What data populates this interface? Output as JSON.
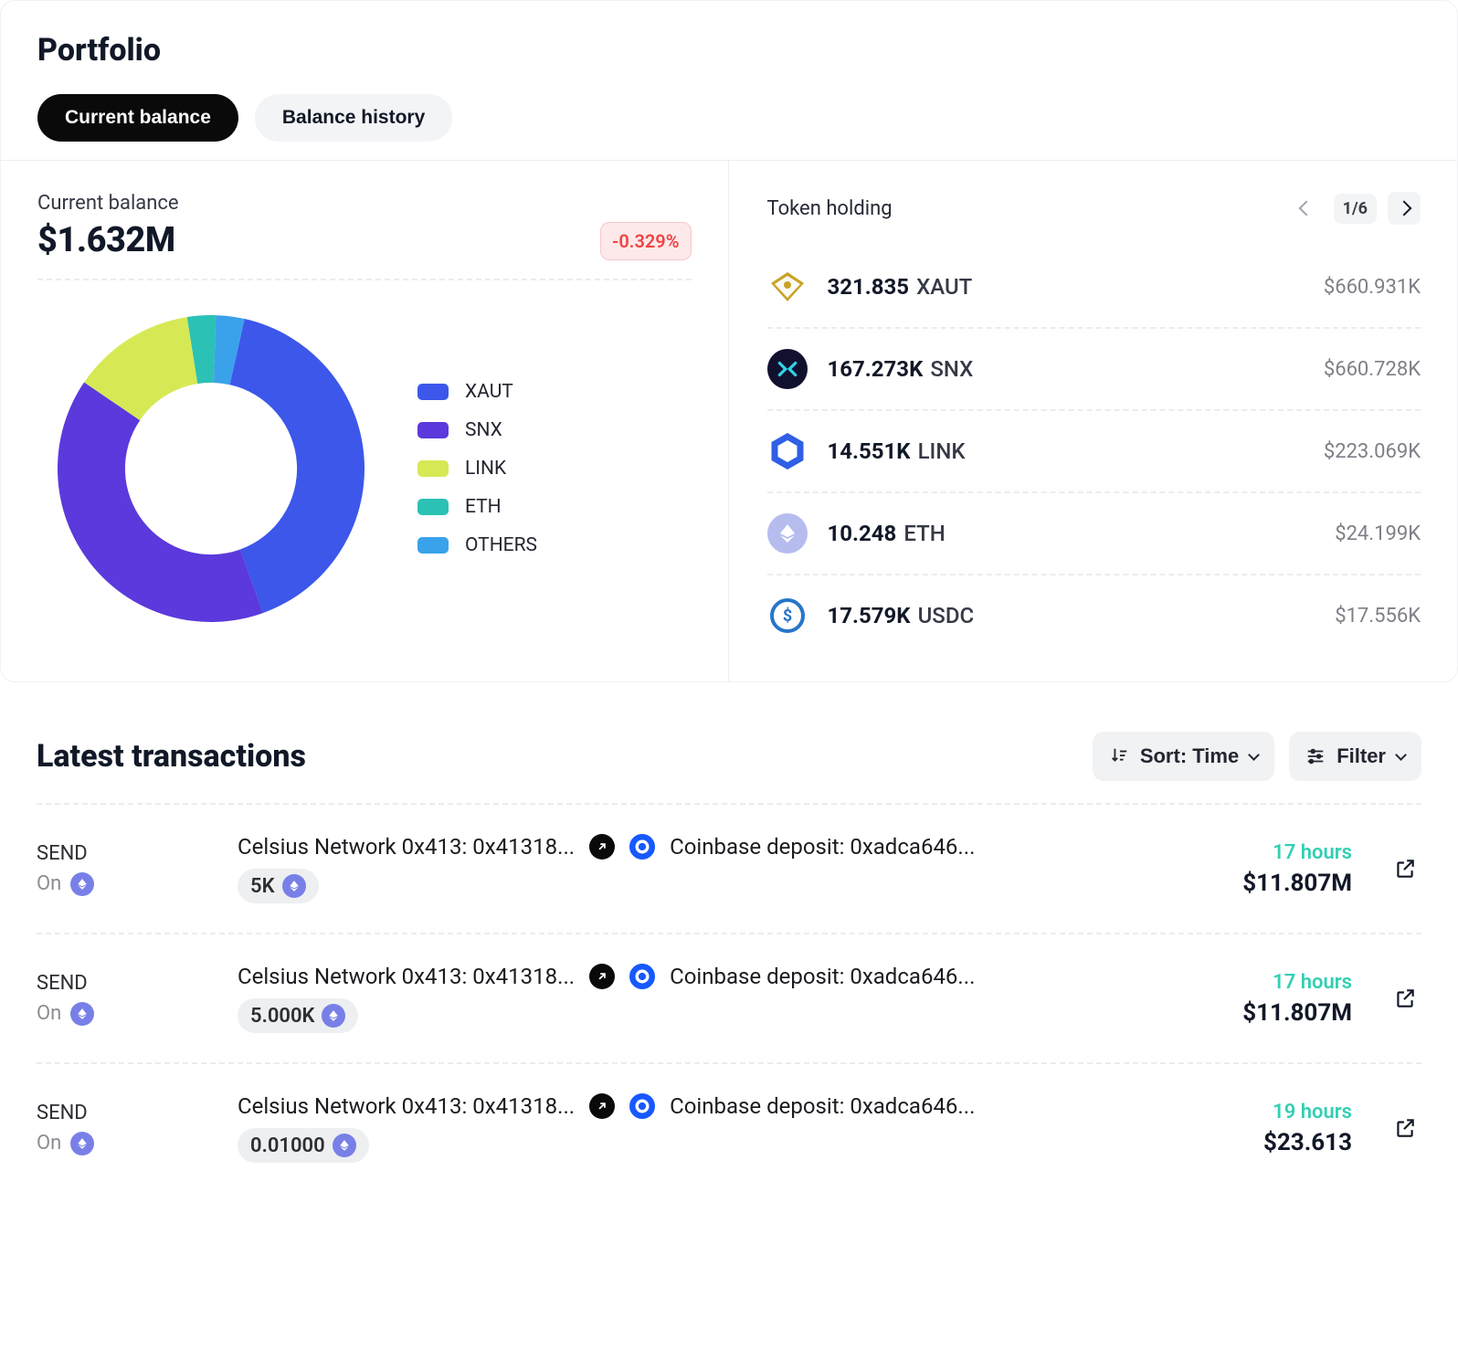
{
  "portfolio": {
    "title": "Portfolio",
    "tabs": [
      {
        "label": "Current balance",
        "active": true
      },
      {
        "label": "Balance history",
        "active": false
      }
    ],
    "balance": {
      "label": "Current balance",
      "value": "$1.632M",
      "change": "-0.329%",
      "change_color": "#ef4444",
      "change_bg": "#fde9ea"
    },
    "donut": {
      "type": "pie",
      "cutout_ratio": 0.56,
      "background_color": "#ffffff",
      "slices": [
        {
          "label": "XAUT",
          "value": 41,
          "color": "#3c57ea"
        },
        {
          "label": "SNX",
          "value": 40,
          "color": "#5b39dc"
        },
        {
          "label": "LINK",
          "value": 13,
          "color": "#d6e955"
        },
        {
          "label": "ETH",
          "value": 3,
          "color": "#2bc1b5"
        },
        {
          "label": "OTHERS",
          "value": 3,
          "color": "#3aa2ea"
        }
      ],
      "legend_fontsize": 21,
      "legend_text_color": "#232530"
    },
    "holdings": {
      "title": "Token holding",
      "page": "1/6",
      "items": [
        {
          "amount": "321.835",
          "symbol": "XAUT",
          "value": "$660.931K",
          "icon_bg": "#c8a328",
          "icon_shape": "diamond"
        },
        {
          "amount": "167.273K",
          "symbol": "SNX",
          "value": "$660.728K",
          "icon_bg": "#12102f",
          "icon_shape": "snx"
        },
        {
          "amount": "14.551K",
          "symbol": "LINK",
          "value": "$223.069K",
          "icon_bg": "#ffffff",
          "icon_shape": "hexagon",
          "icon_stroke": "#2f5fe5"
        },
        {
          "amount": "10.248",
          "symbol": "ETH",
          "value": "$24.199K",
          "icon_bg": "#b7bcef",
          "icon_shape": "eth"
        },
        {
          "amount": "17.579K",
          "symbol": "USDC",
          "value": "$17.556K",
          "icon_bg": "#ffffff",
          "icon_shape": "usdc",
          "icon_stroke": "#2775ca"
        }
      ]
    }
  },
  "transactions": {
    "title": "Latest transactions",
    "sort_label": "Sort: Time",
    "filter_label": "Filter",
    "items": [
      {
        "type": "SEND",
        "on_label": "On",
        "from": "Celsius Network 0x413: 0x41318...",
        "to": "Coinbase deposit: 0xadca646...",
        "amount_chip": "5K",
        "time": "17 hours",
        "value": "$11.807M"
      },
      {
        "type": "SEND",
        "on_label": "On",
        "from": "Celsius Network 0x413: 0x41318...",
        "to": "Coinbase deposit: 0xadca646...",
        "amount_chip": "5.000K",
        "time": "17 hours",
        "value": "$11.807M"
      },
      {
        "type": "SEND",
        "on_label": "On",
        "from": "Celsius Network 0x413: 0x41318...",
        "to": "Coinbase deposit: 0xadca646...",
        "amount_chip": "0.01000",
        "time": "19 hours",
        "value": "$23.613"
      }
    ]
  },
  "colors": {
    "text": "#111827",
    "muted": "#7e7f87",
    "divider": "#ececec",
    "teal": "#33cfb3"
  }
}
